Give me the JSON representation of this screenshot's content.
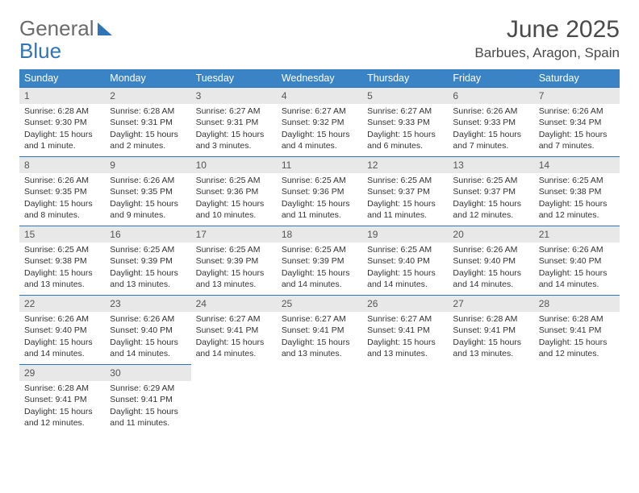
{
  "logo": {
    "text1": "General",
    "text2": "Blue"
  },
  "title": "June 2025",
  "location": "Barbues, Aragon, Spain",
  "colors": {
    "header_bg": "#3a84c5",
    "header_text": "#ffffff",
    "daynum_bg": "#e8e8e8",
    "border_top": "#2f74b5",
    "body_text": "#333333",
    "logo_gray": "#6b6b6b",
    "logo_blue": "#2f74b5"
  },
  "weekdays": [
    "Sunday",
    "Monday",
    "Tuesday",
    "Wednesday",
    "Thursday",
    "Friday",
    "Saturday"
  ],
  "days": [
    {
      "n": "1",
      "sr": "6:28 AM",
      "ss": "9:30 PM",
      "dl": "15 hours and 1 minute."
    },
    {
      "n": "2",
      "sr": "6:28 AM",
      "ss": "9:31 PM",
      "dl": "15 hours and 2 minutes."
    },
    {
      "n": "3",
      "sr": "6:27 AM",
      "ss": "9:31 PM",
      "dl": "15 hours and 3 minutes."
    },
    {
      "n": "4",
      "sr": "6:27 AM",
      "ss": "9:32 PM",
      "dl": "15 hours and 4 minutes."
    },
    {
      "n": "5",
      "sr": "6:27 AM",
      "ss": "9:33 PM",
      "dl": "15 hours and 6 minutes."
    },
    {
      "n": "6",
      "sr": "6:26 AM",
      "ss": "9:33 PM",
      "dl": "15 hours and 7 minutes."
    },
    {
      "n": "7",
      "sr": "6:26 AM",
      "ss": "9:34 PM",
      "dl": "15 hours and 7 minutes."
    },
    {
      "n": "8",
      "sr": "6:26 AM",
      "ss": "9:35 PM",
      "dl": "15 hours and 8 minutes."
    },
    {
      "n": "9",
      "sr": "6:26 AM",
      "ss": "9:35 PM",
      "dl": "15 hours and 9 minutes."
    },
    {
      "n": "10",
      "sr": "6:25 AM",
      "ss": "9:36 PM",
      "dl": "15 hours and 10 minutes."
    },
    {
      "n": "11",
      "sr": "6:25 AM",
      "ss": "9:36 PM",
      "dl": "15 hours and 11 minutes."
    },
    {
      "n": "12",
      "sr": "6:25 AM",
      "ss": "9:37 PM",
      "dl": "15 hours and 11 minutes."
    },
    {
      "n": "13",
      "sr": "6:25 AM",
      "ss": "9:37 PM",
      "dl": "15 hours and 12 minutes."
    },
    {
      "n": "14",
      "sr": "6:25 AM",
      "ss": "9:38 PM",
      "dl": "15 hours and 12 minutes."
    },
    {
      "n": "15",
      "sr": "6:25 AM",
      "ss": "9:38 PM",
      "dl": "15 hours and 13 minutes."
    },
    {
      "n": "16",
      "sr": "6:25 AM",
      "ss": "9:39 PM",
      "dl": "15 hours and 13 minutes."
    },
    {
      "n": "17",
      "sr": "6:25 AM",
      "ss": "9:39 PM",
      "dl": "15 hours and 13 minutes."
    },
    {
      "n": "18",
      "sr": "6:25 AM",
      "ss": "9:39 PM",
      "dl": "15 hours and 14 minutes."
    },
    {
      "n": "19",
      "sr": "6:25 AM",
      "ss": "9:40 PM",
      "dl": "15 hours and 14 minutes."
    },
    {
      "n": "20",
      "sr": "6:26 AM",
      "ss": "9:40 PM",
      "dl": "15 hours and 14 minutes."
    },
    {
      "n": "21",
      "sr": "6:26 AM",
      "ss": "9:40 PM",
      "dl": "15 hours and 14 minutes."
    },
    {
      "n": "22",
      "sr": "6:26 AM",
      "ss": "9:40 PM",
      "dl": "15 hours and 14 minutes."
    },
    {
      "n": "23",
      "sr": "6:26 AM",
      "ss": "9:40 PM",
      "dl": "15 hours and 14 minutes."
    },
    {
      "n": "24",
      "sr": "6:27 AM",
      "ss": "9:41 PM",
      "dl": "15 hours and 14 minutes."
    },
    {
      "n": "25",
      "sr": "6:27 AM",
      "ss": "9:41 PM",
      "dl": "15 hours and 13 minutes."
    },
    {
      "n": "26",
      "sr": "6:27 AM",
      "ss": "9:41 PM",
      "dl": "15 hours and 13 minutes."
    },
    {
      "n": "27",
      "sr": "6:28 AM",
      "ss": "9:41 PM",
      "dl": "15 hours and 13 minutes."
    },
    {
      "n": "28",
      "sr": "6:28 AM",
      "ss": "9:41 PM",
      "dl": "15 hours and 12 minutes."
    },
    {
      "n": "29",
      "sr": "6:28 AM",
      "ss": "9:41 PM",
      "dl": "15 hours and 12 minutes."
    },
    {
      "n": "30",
      "sr": "6:29 AM",
      "ss": "9:41 PM",
      "dl": "15 hours and 11 minutes."
    }
  ],
  "labels": {
    "sunrise": "Sunrise:",
    "sunset": "Sunset:",
    "daylight": "Daylight:"
  }
}
